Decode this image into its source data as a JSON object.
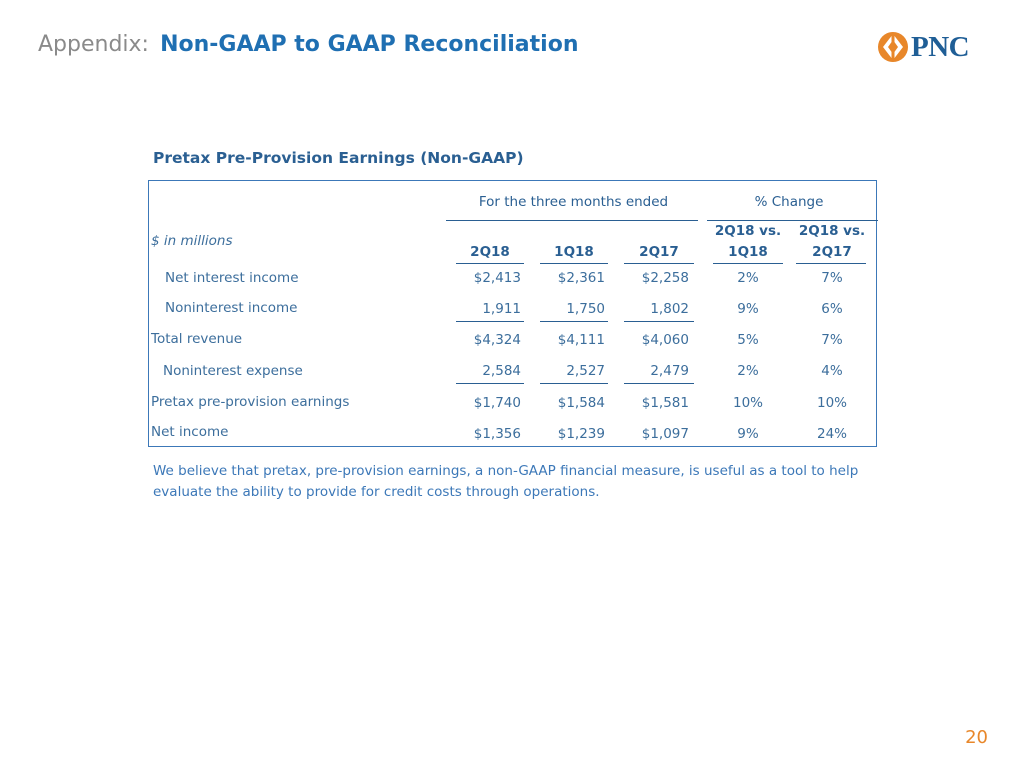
{
  "header": {
    "prefix": "Appendix:",
    "title": "Non-GAAP to GAAP Reconciliation"
  },
  "logo": {
    "text": "PNC",
    "colors": {
      "mark": "#e8872a",
      "text": "#1f5e96"
    }
  },
  "table": {
    "title": "Pretax Pre-Provision Earnings  (Non-GAAP)",
    "units_label": "$ in millions",
    "group_headers": {
      "period": "For the three months ended",
      "change": "% Change"
    },
    "columns": [
      "2Q18",
      "1Q18",
      "2Q17",
      "2Q18 vs. 1Q18",
      "2Q18 vs. 2Q17"
    ],
    "columns_split": [
      {
        "line1": "",
        "line2": "2Q18"
      },
      {
        "line1": "",
        "line2": "1Q18"
      },
      {
        "line1": "",
        "line2": "2Q17"
      },
      {
        "line1": "2Q18 vs.",
        "line2": "1Q18"
      },
      {
        "line1": "2Q18 vs.",
        "line2": "2Q17"
      }
    ],
    "rows": [
      {
        "label": "Net interest income",
        "values": [
          "$2,413",
          "$2,361",
          "$2,258",
          "2%",
          "7%"
        ]
      },
      {
        "label": "Noninterest income",
        "values": [
          "1,911",
          "1,750",
          "1,802",
          "9%",
          "6%"
        ]
      },
      {
        "label": "Total revenue",
        "values": [
          "$4,324",
          "$4,111",
          "$4,060",
          "5%",
          "7%"
        ]
      },
      {
        "label": "Noninterest expense",
        "values": [
          "2,584",
          "2,527",
          "2,479",
          "2%",
          "4%"
        ]
      },
      {
        "label": "Pretax pre-provision earnings",
        "values": [
          "$1,740",
          "$1,584",
          "$1,581",
          "10%",
          "10%"
        ]
      },
      {
        "label": "Net income",
        "values": [
          "$1,356",
          "$1,239",
          "$1,097",
          "9%",
          "24%"
        ]
      }
    ]
  },
  "footnote": "We believe that pretax, pre-provision earnings, a non-GAAP financial measure, is useful as a tool to help evaluate the ability to provide for credit costs through operations.",
  "page_number": "20",
  "colors": {
    "title_blue": "#1f6fb2",
    "text_blue": "#3c6e9c",
    "border_blue": "#3c78b8",
    "accent_orange": "#e8872a"
  }
}
